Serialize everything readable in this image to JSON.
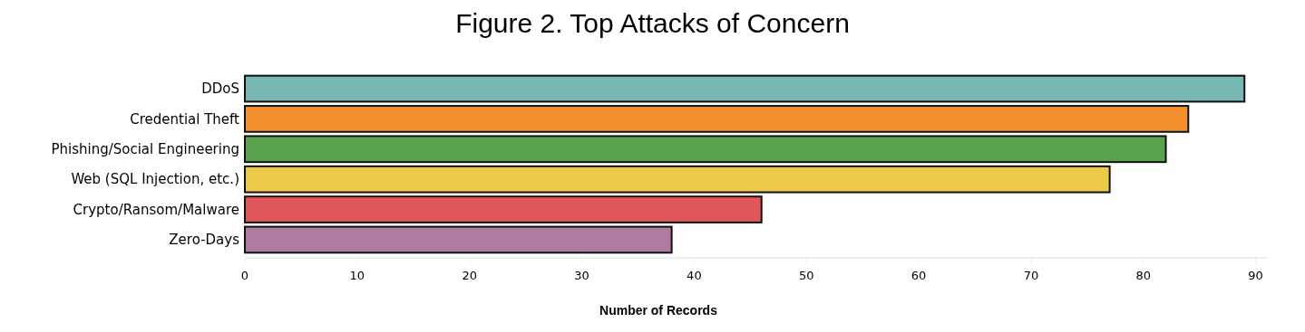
{
  "chart_data": {
    "type": "bar",
    "title": "Figure 2. Top Attacks of Concern",
    "xlabel": "Number of Records",
    "orientation": "horizontal",
    "categories": [
      "DDoS",
      "Credential Theft",
      "Phishing/Social Engineering",
      "Web (SQL Injection, etc.)",
      "Crypto/Ransom/Malware",
      "Zero-Days"
    ],
    "values": [
      89,
      84,
      82,
      77,
      46,
      38
    ],
    "colors": [
      "#78b8b2",
      "#f28e2c",
      "#59a14f",
      "#edc948",
      "#e15759",
      "#b07aa1"
    ],
    "xlim": [
      0,
      91
    ],
    "xticks": [
      0,
      10,
      20,
      30,
      40,
      50,
      60,
      70,
      80,
      90
    ]
  }
}
